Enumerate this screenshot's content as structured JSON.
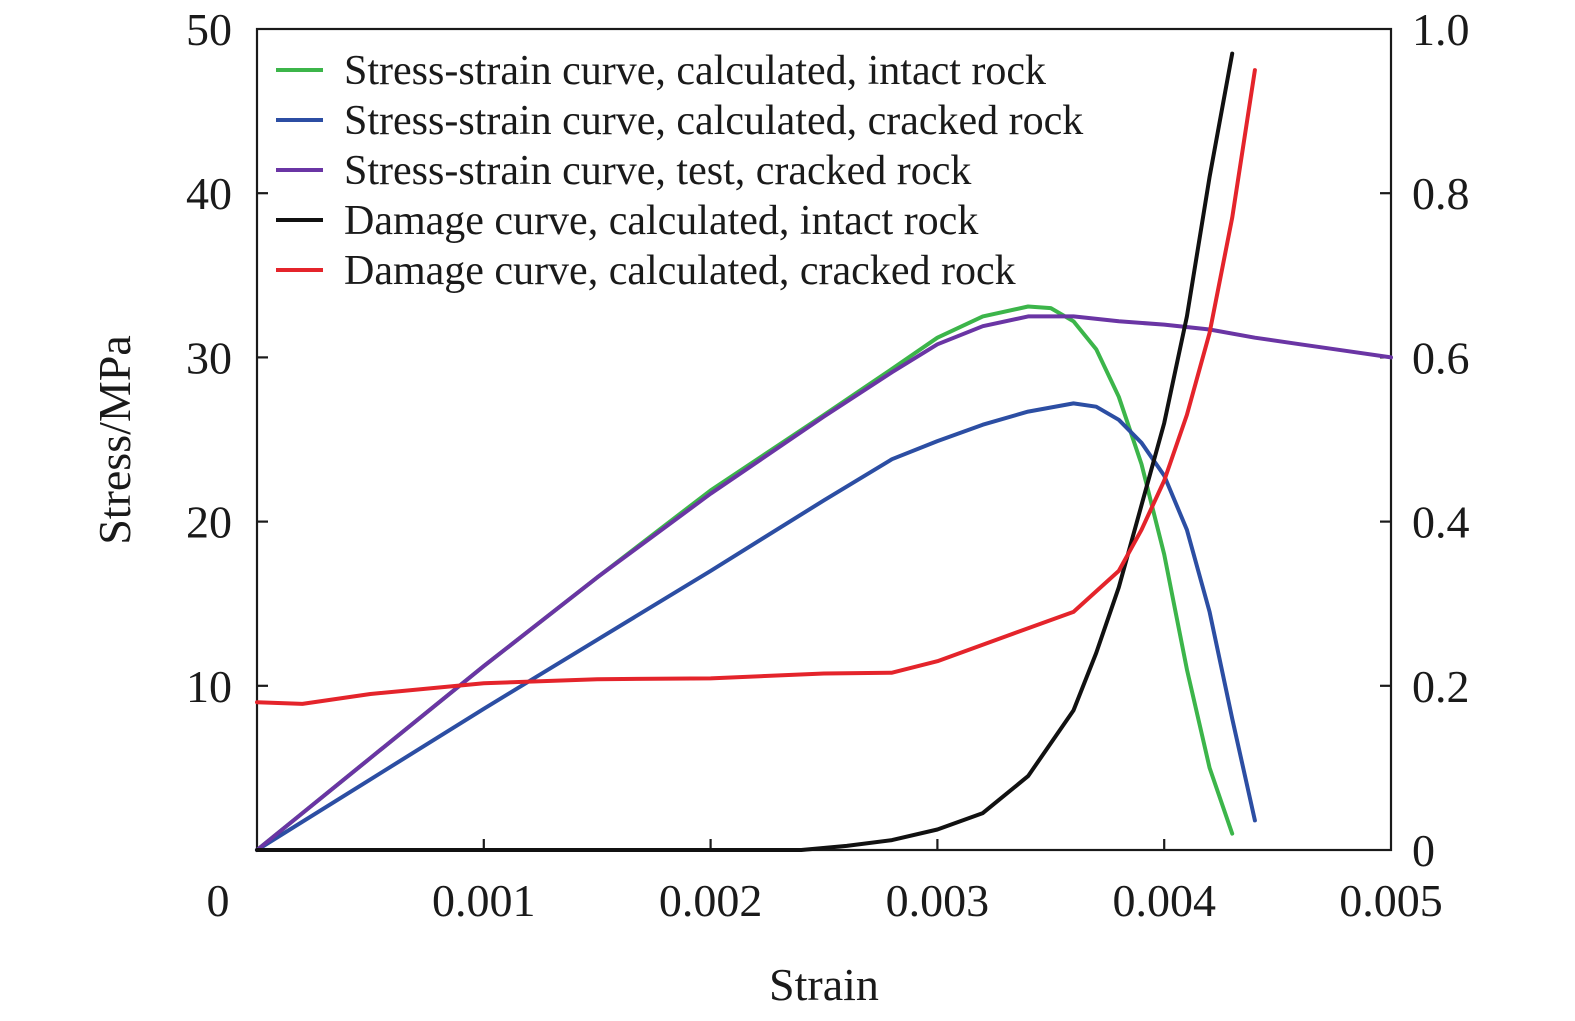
{
  "chart_data": {
    "type": "line",
    "title": "",
    "xlabel": "Strain",
    "ylabel": "Stress/MPa",
    "y2label": "",
    "xlim": [
      0,
      0.005
    ],
    "ylim": [
      0,
      50
    ],
    "y2lim": [
      0,
      1.0
    ],
    "grid": false,
    "legend_position": "top-left",
    "x_ticks": [
      "0",
      "0.001",
      "0.002",
      "0.003",
      "0.004",
      "0.005"
    ],
    "x_tick_values": [
      0,
      0.001,
      0.002,
      0.003,
      0.004,
      0.005
    ],
    "y_ticks": [
      "10",
      "20",
      "30",
      "40",
      "50"
    ],
    "y_tick_values": [
      10,
      20,
      30,
      40,
      50
    ],
    "y2_ticks": [
      "0",
      "0.2",
      "0.4",
      "0.6",
      "0.8",
      "1.0"
    ],
    "y2_tick_values": [
      0,
      0.2,
      0.4,
      0.6,
      0.8,
      1.0
    ],
    "series": [
      {
        "name": "Stress-strain curve, calculated, intact rock",
        "color": "#3cb54a",
        "axis": "left",
        "x": [
          0,
          0.0005,
          0.001,
          0.0015,
          0.002,
          0.0025,
          0.0028,
          0.003,
          0.0032,
          0.0034,
          0.0035,
          0.0036,
          0.0037,
          0.0038,
          0.0039,
          0.004,
          0.0041,
          0.0042,
          0.0043
        ],
        "y": [
          0,
          5.6,
          11.2,
          16.6,
          21.9,
          26.5,
          29.3,
          31.2,
          32.5,
          33.1,
          33.0,
          32.2,
          30.5,
          27.6,
          23.5,
          18.0,
          11.0,
          5.0,
          1.0
        ]
      },
      {
        "name": "Stress-strain curve, calculated, cracked rock",
        "color": "#2c4ea3",
        "axis": "left",
        "x": [
          0,
          0.0005,
          0.001,
          0.0015,
          0.002,
          0.0025,
          0.0028,
          0.003,
          0.0032,
          0.0034,
          0.0036,
          0.0037,
          0.0038,
          0.0039,
          0.004,
          0.0041,
          0.0042,
          0.0043,
          0.0044
        ],
        "y": [
          0,
          4.3,
          8.6,
          12.8,
          17.0,
          21.3,
          23.8,
          24.9,
          25.9,
          26.7,
          27.2,
          27.0,
          26.2,
          24.8,
          22.8,
          19.5,
          14.5,
          8.0,
          1.8
        ]
      },
      {
        "name": "Stress-strain curve, test, cracked rock",
        "color": "#6a35a4",
        "axis": "left",
        "x": [
          0,
          0.0005,
          0.001,
          0.0015,
          0.002,
          0.0025,
          0.0028,
          0.003,
          0.0032,
          0.0034,
          0.0036,
          0.0038,
          0.004,
          0.0042,
          0.0044,
          0.0046,
          0.0048,
          0.005
        ],
        "y": [
          0,
          5.6,
          11.2,
          16.6,
          21.7,
          26.4,
          29.1,
          30.8,
          31.9,
          32.5,
          32.5,
          32.2,
          32.0,
          31.7,
          31.2,
          30.8,
          30.4,
          30.0
        ]
      },
      {
        "name": "Damage curve, calculated, intact rock",
        "color": "#111111",
        "axis": "right",
        "x": [
          0,
          0.002,
          0.0024,
          0.0026,
          0.0028,
          0.003,
          0.0032,
          0.0034,
          0.0036,
          0.0037,
          0.0038,
          0.0039,
          0.004,
          0.0041,
          0.0042,
          0.0043
        ],
        "y": [
          0,
          0,
          0,
          0.005,
          0.012,
          0.025,
          0.045,
          0.09,
          0.17,
          0.24,
          0.32,
          0.42,
          0.52,
          0.65,
          0.82,
          0.97
        ]
      },
      {
        "name": "Damage curve, calculated, cracked rock",
        "color": "#e4242b",
        "axis": "right",
        "x": [
          0,
          0.0002,
          0.0005,
          0.001,
          0.0015,
          0.002,
          0.0025,
          0.0028,
          0.003,
          0.0033,
          0.0036,
          0.0038,
          0.0039,
          0.004,
          0.0041,
          0.0042,
          0.0043,
          0.0044
        ],
        "y": [
          0.18,
          0.178,
          0.19,
          0.203,
          0.208,
          0.209,
          0.215,
          0.216,
          0.23,
          0.26,
          0.29,
          0.34,
          0.39,
          0.45,
          0.53,
          0.63,
          0.77,
          0.95
        ]
      }
    ]
  }
}
